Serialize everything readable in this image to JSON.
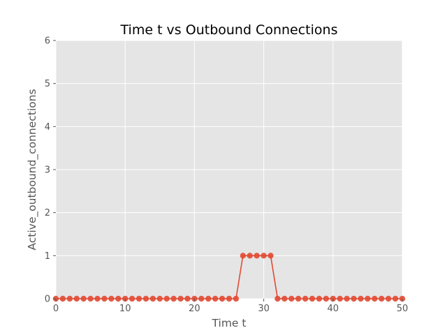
{
  "chart_data": {
    "type": "line",
    "title": "Time t vs Outbound Connections",
    "xlabel": "Time t",
    "ylabel": "Active_outbound_connections",
    "xlim": [
      0,
      50
    ],
    "ylim": [
      0,
      6
    ],
    "xticks": [
      0,
      10,
      20,
      30,
      40,
      50
    ],
    "yticks": [
      0,
      1,
      2,
      3,
      4,
      5,
      6
    ],
    "grid": true,
    "colors": {
      "plot_background": "#e5e5e5",
      "series": "#e24a33",
      "grid": "#ffffff"
    },
    "series": [
      {
        "x": [
          0,
          1,
          2,
          3,
          4,
          5,
          6,
          7,
          8,
          9,
          10,
          11,
          12,
          13,
          14,
          15,
          16,
          17,
          18,
          19,
          20,
          21,
          22,
          23,
          24,
          25,
          26,
          27,
          28,
          29,
          30,
          31,
          32,
          33,
          34,
          35,
          36,
          37,
          38,
          39,
          40,
          41,
          42,
          43,
          44,
          45,
          46,
          47,
          48,
          49,
          50
        ],
        "y": [
          0,
          0,
          0,
          0,
          0,
          0,
          0,
          0,
          0,
          0,
          0,
          0,
          0,
          0,
          0,
          0,
          0,
          0,
          0,
          0,
          0,
          0,
          0,
          0,
          0,
          0,
          0,
          1,
          1,
          1,
          1,
          1,
          0,
          0,
          0,
          0,
          0,
          0,
          0,
          0,
          0,
          0,
          0,
          0,
          0,
          0,
          0,
          0,
          0,
          0,
          0
        ],
        "marker": "circle"
      }
    ]
  }
}
